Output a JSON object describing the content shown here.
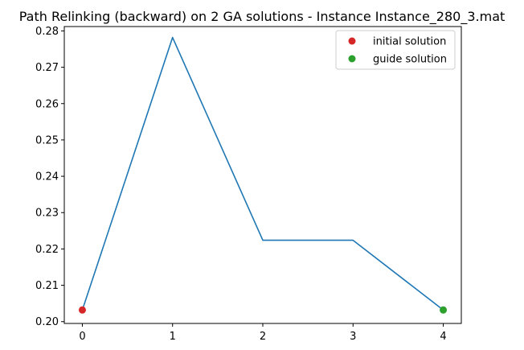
{
  "chart_data": {
    "type": "line",
    "title": "Path Relinking (backward) on 2 GA solutions  - Instance Instance_280_3.mat",
    "xlabel": "",
    "ylabel": "",
    "x": [
      0,
      1,
      2,
      3,
      4
    ],
    "x_ticks": [
      "0",
      "1",
      "2",
      "3",
      "4"
    ],
    "y_ticks": [
      "0.20",
      "0.21",
      "0.22",
      "0.23",
      "0.24",
      "0.25",
      "0.26",
      "0.27",
      "0.28"
    ],
    "xlim": [
      -0.2,
      4.2
    ],
    "ylim": [
      0.1995,
      0.2812
    ],
    "grid": false,
    "legend_position": "top-right",
    "series": [
      {
        "values": [
          0.2032,
          0.2782,
          0.2224,
          0.2224,
          0.2032
        ],
        "color": "#1f77b4"
      }
    ],
    "markers": [
      {
        "name": "initial solution",
        "x": 0,
        "y": 0.2032,
        "color": "#d62728"
      },
      {
        "name": "guide solution",
        "x": 4,
        "y": 0.2032,
        "color": "#2ca02c"
      }
    ]
  }
}
